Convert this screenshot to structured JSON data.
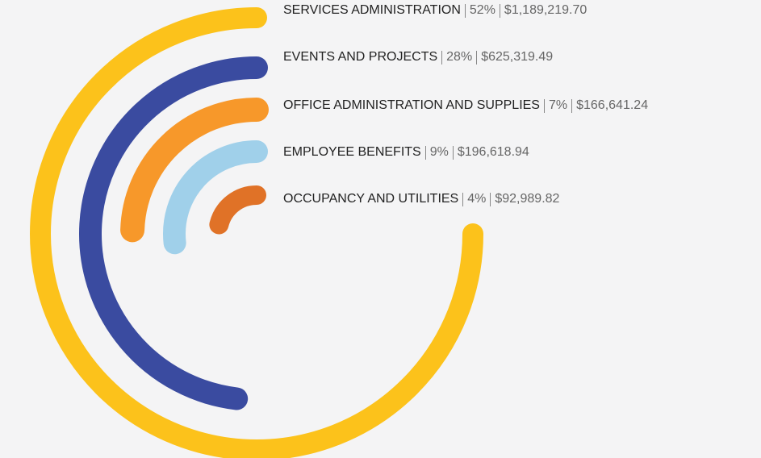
{
  "chart_data": {
    "type": "radial-bar",
    "categories": [
      "SERVICES ADMINISTRATION",
      "EVENTS AND PROJECTS",
      "OFFICE ADMINISTRATION AND SUPPLIES",
      "EMPLOYEE BENEFITS",
      "OCCUPANCY AND UTILITIES"
    ],
    "values": [
      52,
      28,
      7,
      9,
      4
    ],
    "value_labels": [
      "52%",
      "28%",
      "7%",
      "9%",
      "4%"
    ],
    "amounts": [
      "$1,189,219.70",
      "$625,319.49",
      "$166,641.24",
      "$196,618.94",
      "$92,989.82"
    ],
    "colors": [
      "#fcc21b",
      "#3a4ba0",
      "#f7982a",
      "#a0d0ea",
      "#e07227"
    ]
  }
}
